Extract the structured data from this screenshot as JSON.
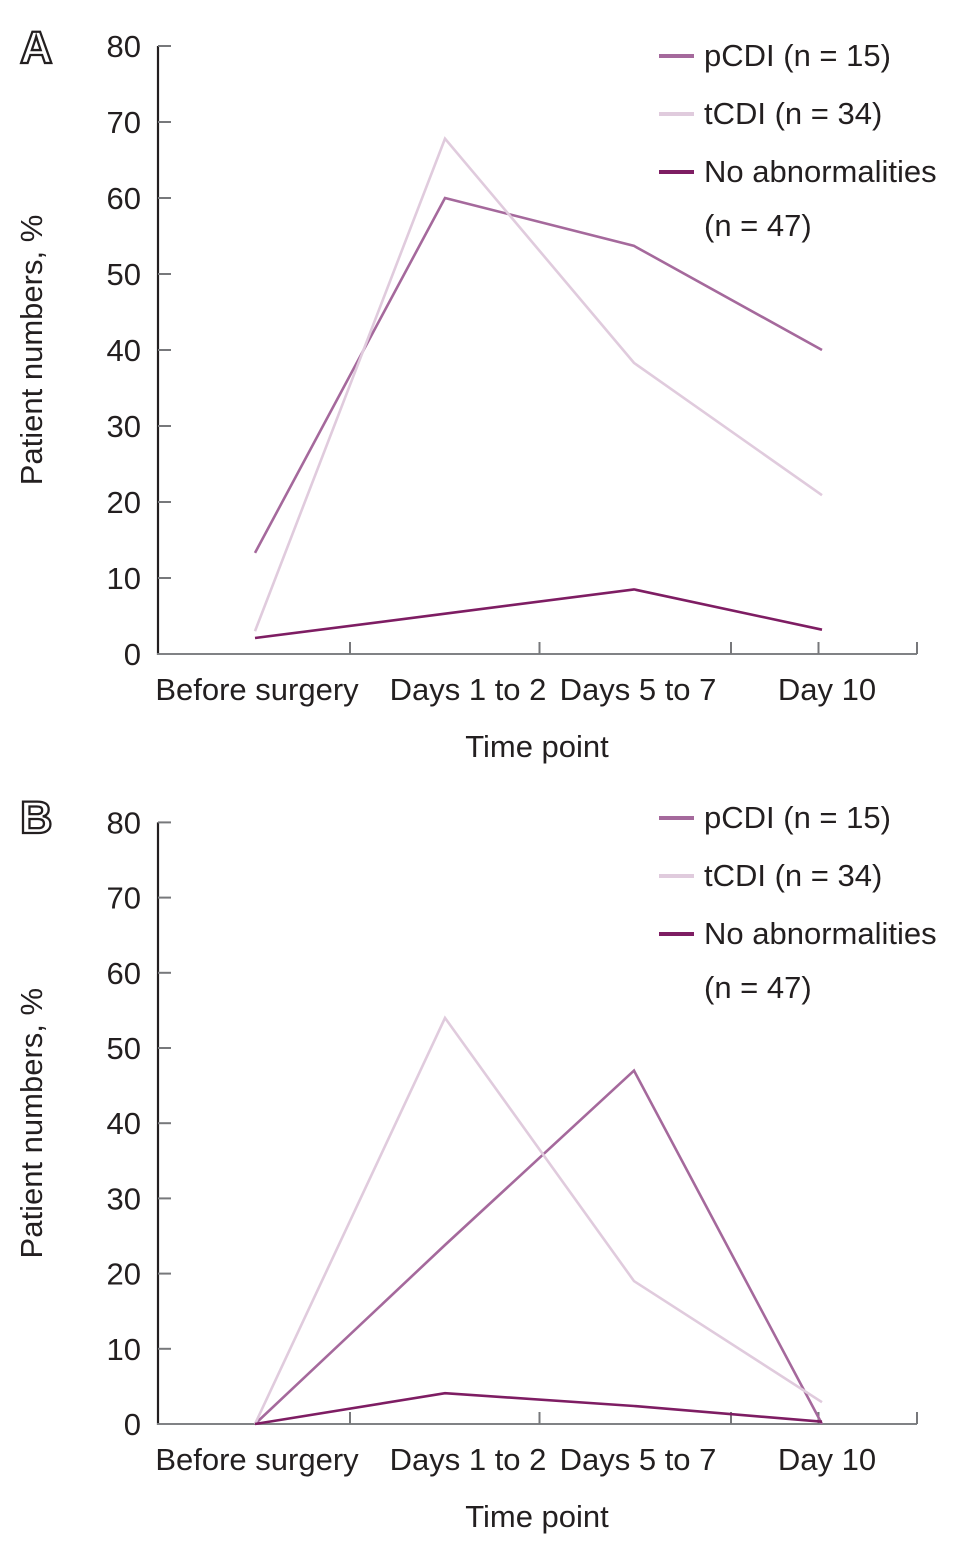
{
  "figure": {
    "description": "Two stacked line charts (panels A and B) showing patient percentages over perioperative time points",
    "panel_letters": [
      "A",
      "B"
    ]
  },
  "chart_data": [
    {
      "type": "line",
      "panel": "A",
      "title": "",
      "xlabel": "Time point",
      "ylabel": "Patient numbers, %",
      "ylim": [
        0,
        80
      ],
      "y_ticks": [
        0,
        10,
        20,
        30,
        40,
        50,
        60,
        70,
        80
      ],
      "categories": [
        "Before surgery",
        "Days 1 to 2",
        "Days 5 to 7",
        "Day 10"
      ],
      "grid": false,
      "legend_position": "top-right",
      "legend_lines": [
        [
          "pCDI (n = 15)"
        ],
        [
          "tCDI (n = 34)"
        ],
        [
          "No abnormalities",
          "(n = 47)"
        ]
      ],
      "series": [
        {
          "name": "pCDI (n = 15)",
          "color": "#a5699c",
          "values": [
            13.3,
            60.0,
            53.7,
            40.0
          ]
        },
        {
          "name": "tCDI (n = 34)",
          "color": "#e0cbdd",
          "values": [
            3.0,
            67.8,
            38.3,
            20.9
          ]
        },
        {
          "name": "No abnormalities (n = 47)",
          "color": "#7e1d63",
          "values": [
            2.1,
            5.3,
            8.5,
            3.2
          ]
        }
      ]
    },
    {
      "type": "line",
      "panel": "B",
      "title": "",
      "xlabel": "Time point",
      "ylabel": "Patient numbers, %",
      "ylim": [
        0,
        80
      ],
      "y_ticks": [
        0,
        10,
        20,
        30,
        40,
        50,
        60,
        70,
        80
      ],
      "categories": [
        "Before surgery",
        "Days 1 to 2",
        "Days 5 to 7",
        "Day 10"
      ],
      "grid": false,
      "legend_position": "top-right",
      "legend_lines": [
        [
          "pCDI (n = 15)"
        ],
        [
          "tCDI (n = 34)"
        ],
        [
          "No abnormalities",
          "(n = 47)"
        ]
      ],
      "series": [
        {
          "name": "pCDI (n = 15)",
          "color": "#a5699c",
          "values": [
            0.0,
            23.8,
            47.0,
            0.0
          ]
        },
        {
          "name": "tCDI (n = 34)",
          "color": "#e0cbdd",
          "values": [
            0.0,
            54.0,
            19.0,
            2.9
          ]
        },
        {
          "name": "No abnormalities (n = 47)",
          "color": "#7e1d63",
          "values": [
            0.0,
            4.1,
            2.4,
            0.3
          ]
        }
      ]
    }
  ]
}
